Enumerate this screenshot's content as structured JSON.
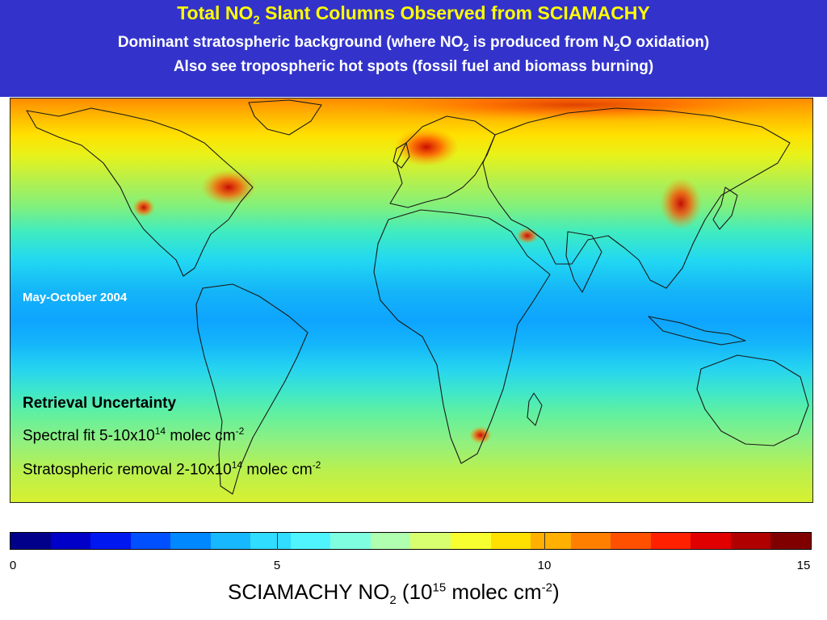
{
  "header": {
    "title_part1": "Total NO",
    "title_sub": "2",
    "title_part2": " Slant Columns Observed from SCIAMACHY",
    "line2_part1": "Dominant stratospheric background (where NO",
    "line2_sub1": "2",
    "line2_part2": " is produced from N",
    "line2_sub2": "2",
    "line2_part3": "O oxidation)",
    "line3": "Also see tropospheric hot spots (fossil fuel and biomass burning)"
  },
  "map": {
    "period_label": "May-October 2004",
    "hotspot_regions": [
      "eastern-us",
      "western-europe",
      "eastern-china",
      "south-africa",
      "middle-east",
      "western-us"
    ]
  },
  "uncertainty": {
    "heading": "Retrieval Uncertainty",
    "spectral_prefix": "Spectral fit 5-10x10",
    "spectral_exp": "14",
    "spectral_unit": " molec cm",
    "spectral_unit_exp": "-2",
    "strat_prefix": "Stratospheric removal 2-10x10",
    "strat_exp": "14",
    "strat_unit": " molec cm",
    "strat_unit_exp": "-2"
  },
  "colorbar": {
    "min": 0,
    "max": 15,
    "ticks": [
      "0",
      "5",
      "10",
      "15"
    ],
    "tick_values": [
      0,
      5,
      10,
      15
    ],
    "label_part1": "SCIAMACHY NO",
    "label_sub": "2",
    "label_part2": " (10",
    "label_exp1": "15",
    "label_part3": " molec cm",
    "label_exp2": "-2",
    "label_part4": ")",
    "colors": [
      "#00008b",
      "#0000c8",
      "#0018f0",
      "#0050ff",
      "#0088ff",
      "#18b8ff",
      "#30dcff",
      "#50f4ff",
      "#80ffe0",
      "#b0ffb0",
      "#d8ff70",
      "#f8ff30",
      "#ffe000",
      "#ffb000",
      "#ff8000",
      "#ff5000",
      "#ff2000",
      "#e00000",
      "#b00000",
      "#800000"
    ]
  }
}
